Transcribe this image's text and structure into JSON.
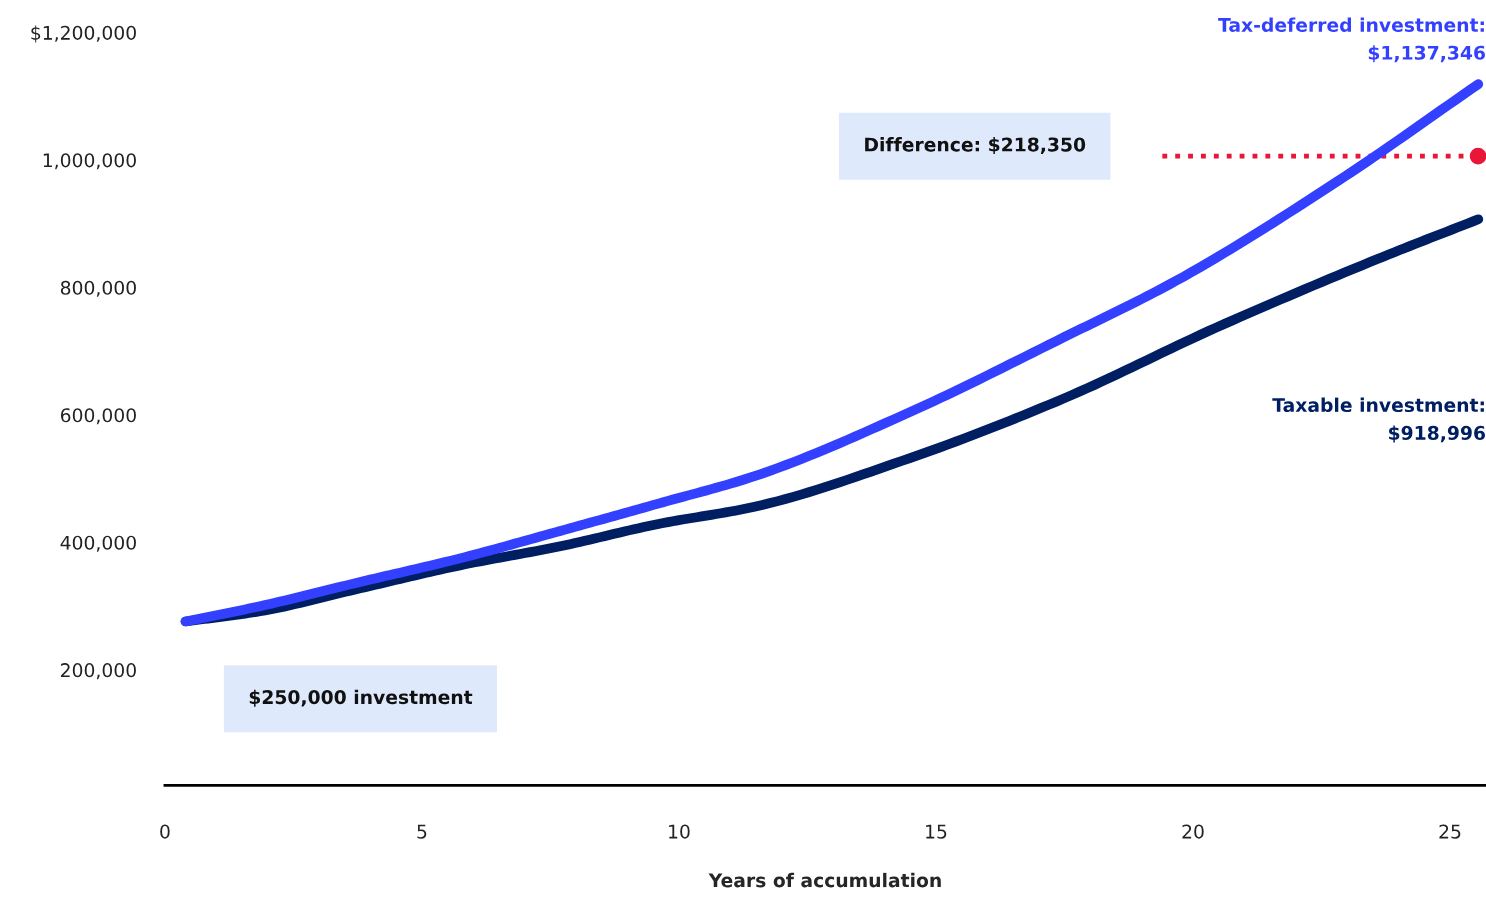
{
  "chart_data": {
    "type": "line",
    "xlabel": "Years of accumulation",
    "xlim": [
      0,
      25.7
    ],
    "xticks": [
      0,
      5,
      10,
      15,
      20,
      25
    ],
    "ylim": [
      19000,
      1200000
    ],
    "yticks": [
      {
        "value": 200000,
        "label": "200,000"
      },
      {
        "value": 400000,
        "label": "400,000"
      },
      {
        "value": 600000,
        "label": "600,000"
      },
      {
        "value": 800000,
        "label": "800,000"
      },
      {
        "value": 1000000,
        "label": "1,000,000"
      },
      {
        "value": 1200000,
        "label": "$1,200,000"
      }
    ],
    "series": [
      {
        "name": "Tax-deferred investment:",
        "color": "#3340ff",
        "x": [
          0.4,
          1.85,
          3.8,
          5.74,
          7.69,
          9.6,
          11.47,
          14.48,
          17.49,
          19.66,
          22.8,
          25.55
        ],
        "values": [
          276000,
          300000,
          338000,
          375000,
          418000,
          461000,
          504000,
          604000,
          722000,
          810000,
          966000,
          1119000
        ]
      },
      {
        "name": "Taxable investment:",
        "color": "#001f63",
        "x": [
          0.4,
          1.85,
          3.8,
          5.74,
          7.69,
          9.6,
          11.47,
          14.48,
          17.49,
          20.45,
          23.6,
          25.55
        ],
        "values": [
          276000,
          292000,
          328000,
          364000,
          394000,
          429000,
          456000,
          532000,
          626000,
          737000,
          845000,
          907000
        ]
      }
    ],
    "annotations": [
      "$1,137,346",
      "$918,996",
      "Difference: $218,350",
      "$250,000 investment"
    ],
    "ref_lines": [
      {
        "axis": "y",
        "value": 1006000,
        "color": "#e8173a",
        "line_style": "dotted"
      }
    ],
    "grid": false,
    "legend": false,
    "marker": "none",
    "line_style": "solid"
  }
}
